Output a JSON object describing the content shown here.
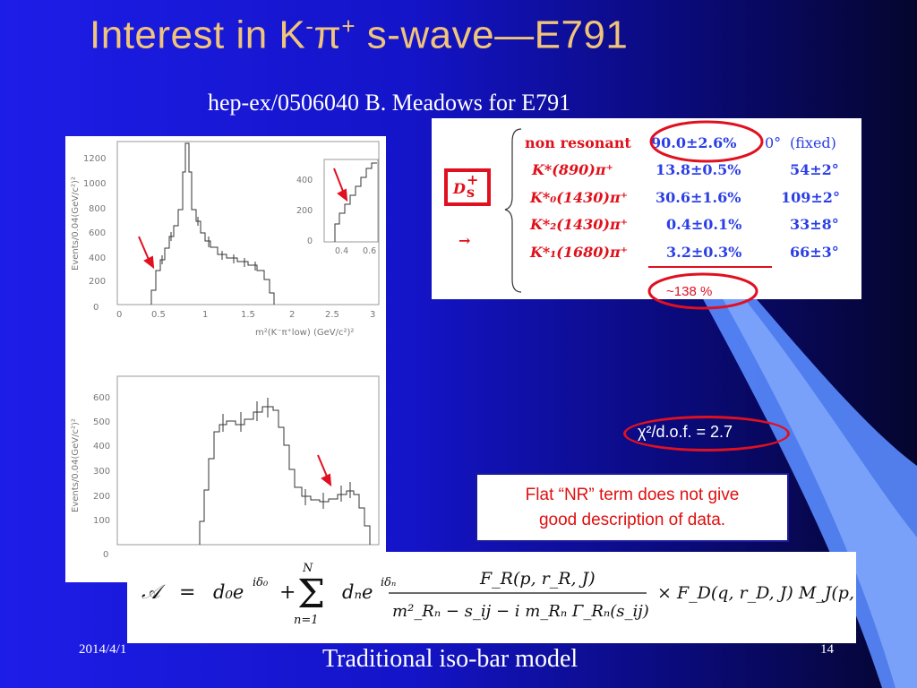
{
  "slide": {
    "title_prefix": "Interest in K",
    "title_sup1": "-",
    "title_pi": "π",
    "title_sup2": "+",
    "title_suffix": " s-wave—E791",
    "subtitle": "hep-ex/0506040  B. Meadows for E791"
  },
  "plot_top": {
    "y_label": "Events/0.04(GeV/c²)²",
    "x_label": "m²(K⁻π⁺low) (GeV/c²)²",
    "y_ticks": [
      "0",
      "200",
      "400",
      "600",
      "800",
      "1000",
      "1200"
    ],
    "x_ticks": [
      "0",
      "0.5",
      "1",
      "1.5",
      "2",
      "2.5",
      "3"
    ],
    "inset_y_ticks": [
      "0",
      "200",
      "400"
    ],
    "inset_x_ticks": [
      "0.4",
      "0.6"
    ]
  },
  "plot_bottom": {
    "y_label": "Events/0.04(GeV/c²)²",
    "y_ticks": [
      "0",
      "100",
      "200",
      "300",
      "400",
      "500",
      "600"
    ]
  },
  "fit_table": {
    "meson": "D",
    "meson_sub": "s",
    "meson_sup": "+",
    "arrow": "→",
    "rows": [
      {
        "name": "non resonant",
        "fraction": "90.0±2.6%",
        "phase": "0°",
        "note": "(fixed)"
      },
      {
        "name": "K*(890)π⁺",
        "fraction": "13.8±0.5%",
        "phase": "54±2°",
        "note": ""
      },
      {
        "name": "K*₀(1430)π⁺",
        "fraction": "30.6±1.6%",
        "phase": "109±2°",
        "note": ""
      },
      {
        "name": "K*₂(1430)π⁺",
        "fraction": "0.4±0.1%",
        "phase": "33±8°",
        "note": ""
      },
      {
        "name": "K*₁(1680)π⁺",
        "fraction": "3.2±0.3%",
        "phase": "66±3°",
        "note": ""
      }
    ],
    "sum_label": "~138 %"
  },
  "chi2": "χ²/d.o.f. = 2.7",
  "note": {
    "line1": "Flat “NR” term does not give",
    "line2": "good description of data."
  },
  "formula": {
    "amp": "𝒜",
    "eq": "=",
    "d0": "d₀e",
    "d0_exp": "iδ₀",
    "plus": "+",
    "sum_sym": "Σ",
    "sum_upper": "N",
    "sum_lower": "n=1",
    "dn": "dₙe",
    "dn_exp": "iδₙ",
    "numerator": "F_R(p, r_R, J)",
    "denominator": "m²_Rₙ − s_ij − i m_Rₙ Γ_Rₙ(s_ij)",
    "tail": "× F_D(q, r_D, J)  M_J(p, q)"
  },
  "footer": {
    "date": "2014/4/1",
    "caption": "Traditional iso-bar model",
    "page": "14"
  },
  "colors": {
    "title": "#f0c47a",
    "highlight_red": "#e01020",
    "table_red": "#e0101a",
    "table_blue": "#2b3fe6"
  }
}
